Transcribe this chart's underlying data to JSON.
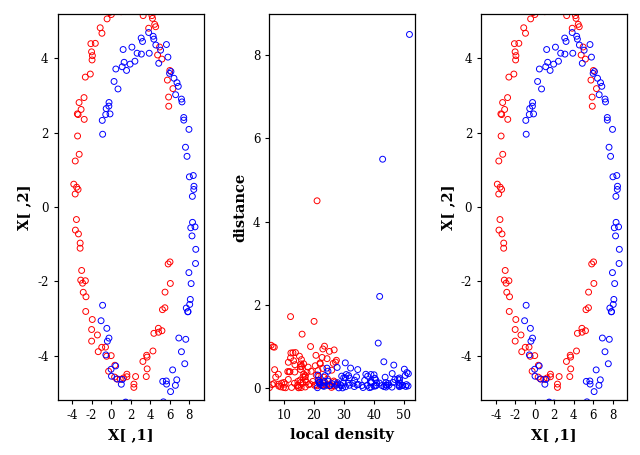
{
  "left_xlabel": "X[ ,1]",
  "left_ylabel": "X[ ,2]",
  "mid_xlabel": "local density",
  "mid_ylabel": "distance",
  "right_xlabel": "X[ ,1]",
  "right_ylabel": "X[ ,2]",
  "red_color": "#FF0000",
  "blue_color": "#0000FF",
  "bg_color": "#FFFFFF",
  "marker_size": 18,
  "linewidth": 0.7,
  "left_xlim": [
    -5.5,
    9.5
  ],
  "left_ylim": [
    -5.2,
    5.2
  ],
  "mid_xlim": [
    5,
    54
  ],
  "mid_ylim": [
    -0.3,
    9.0
  ],
  "right_xlim": [
    -5.5,
    9.5
  ],
  "right_ylim": [
    -5.2,
    5.2
  ],
  "left_xticks": [
    -4,
    -2,
    0,
    2,
    4,
    6,
    8
  ],
  "left_yticks": [
    -4,
    -2,
    0,
    2,
    4
  ],
  "mid_xticks": [
    10,
    20,
    30,
    40,
    50
  ],
  "mid_yticks": [
    0,
    2,
    4,
    6,
    8
  ],
  "right_xticks": [
    -4,
    -2,
    0,
    2,
    4,
    6,
    8
  ],
  "right_yticks": [
    -4,
    -2,
    0,
    2,
    4
  ],
  "n_per_class": 100,
  "seed": 42
}
